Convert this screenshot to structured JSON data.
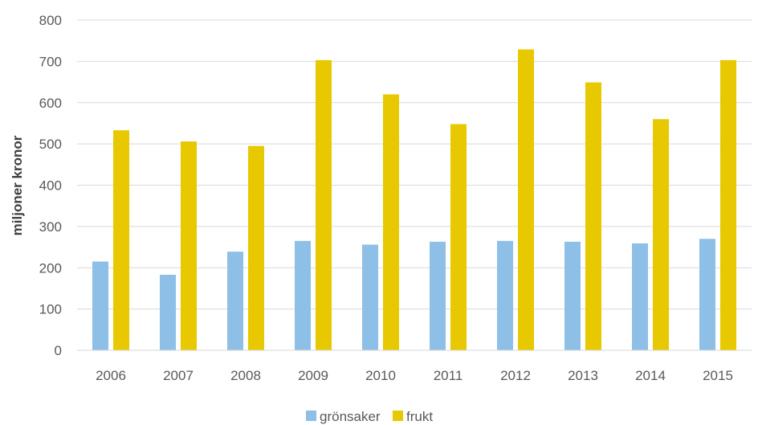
{
  "chart_data": {
    "type": "bar",
    "title": "",
    "xlabel": "",
    "ylabel": "miljoner kronor",
    "ylim": [
      0,
      800
    ],
    "yticks": [
      0,
      100,
      200,
      300,
      400,
      500,
      600,
      700,
      800
    ],
    "grid": true,
    "legend_position": "bottom",
    "categories": [
      "2006",
      "2007",
      "2008",
      "2009",
      "2010",
      "2011",
      "2012",
      "2013",
      "2014",
      "2015"
    ],
    "series": [
      {
        "name": "grönsaker",
        "color": "#8ebfe7",
        "values": [
          215,
          183,
          239,
          265,
          256,
          263,
          265,
          263,
          259,
          270
        ]
      },
      {
        "name": "frukt",
        "color": "#e8c800",
        "values": [
          533,
          506,
          495,
          703,
          620,
          548,
          729,
          649,
          560,
          703
        ]
      }
    ]
  }
}
